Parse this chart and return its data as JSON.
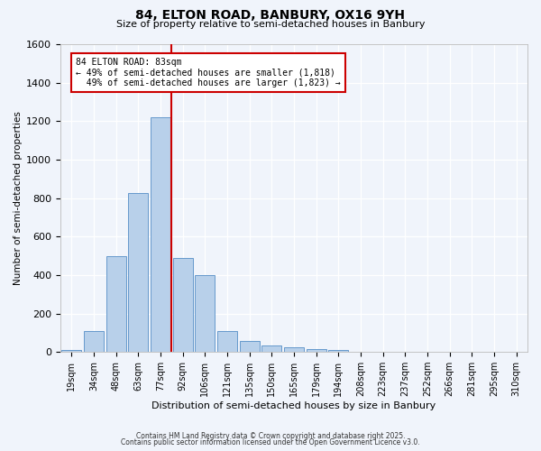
{
  "title1": "84, ELTON ROAD, BANBURY, OX16 9YH",
  "title2": "Size of property relative to semi-detached houses in Banbury",
  "xlabel": "Distribution of semi-detached houses by size in Banbury",
  "ylabel": "Number of semi-detached properties",
  "bar_labels": [
    "19sqm",
    "34sqm",
    "48sqm",
    "63sqm",
    "77sqm",
    "92sqm",
    "106sqm",
    "121sqm",
    "135sqm",
    "150sqm",
    "165sqm",
    "179sqm",
    "194sqm",
    "208sqm",
    "223sqm",
    "237sqm",
    "252sqm",
    "266sqm",
    "281sqm",
    "295sqm",
    "310sqm"
  ],
  "bar_values": [
    10,
    110,
    500,
    825,
    1220,
    490,
    400,
    110,
    55,
    35,
    25,
    15,
    10,
    0,
    0,
    0,
    0,
    0,
    0,
    0,
    0
  ],
  "bar_color": "#b8d0ea",
  "bar_edgecolor": "#6699cc",
  "vline_color": "#cc0000",
  "annotation_title": "84 ELTON ROAD: 83sqm",
  "annotation_line1": "← 49% of semi-detached houses are smaller (1,818)",
  "annotation_line2": "  49% of semi-detached houses are larger (1,823) →",
  "annotation_box_color": "#cc0000",
  "ylim": [
    0,
    1600
  ],
  "yticks": [
    0,
    200,
    400,
    600,
    800,
    1000,
    1200,
    1400,
    1600
  ],
  "bg_color": "#f0f4fb",
  "footer1": "Contains HM Land Registry data © Crown copyright and database right 2025.",
  "footer2": "Contains public sector information licensed under the Open Government Licence v3.0."
}
